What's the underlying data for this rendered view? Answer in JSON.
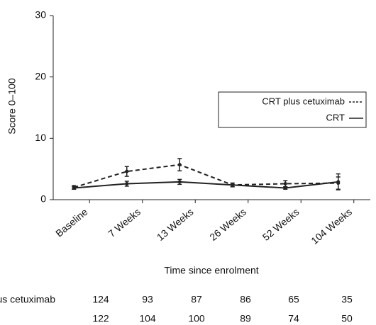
{
  "chart_data": {
    "type": "line",
    "y_label": "Score 0–100",
    "x_label": "Time since enrolment",
    "categories": [
      "Baseline",
      "7 Weeks",
      "13 Weeks",
      "26 Weeks",
      "52 Weeks",
      "104 Weeks"
    ],
    "series": [
      {
        "name": "CRT plus cetuximab",
        "color": "#222222",
        "line_style": "dashed",
        "values": [
          2.0,
          4.6,
          5.7,
          2.4,
          2.6,
          2.7
        ],
        "errors": [
          0.3,
          0.8,
          1.0,
          0.3,
          0.5,
          1.0
        ]
      },
      {
        "name": "CRT",
        "color": "#222222",
        "line_style": "solid",
        "values": [
          1.9,
          2.6,
          2.9,
          2.4,
          1.9,
          2.9
        ],
        "errors": [
          0.2,
          0.4,
          0.4,
          0.3,
          0.2,
          1.3
        ]
      }
    ],
    "ylim": [
      0,
      30
    ],
    "yticks": [
      0,
      10,
      20,
      30
    ],
    "grid": false,
    "legend": "right"
  },
  "table": {
    "rows": [
      {
        "label": "CRT plus cetuximab",
        "values": [
          124,
          93,
          87,
          86,
          65,
          35
        ]
      },
      {
        "label": null,
        "values": [
          122,
          104,
          100,
          89,
          74,
          50
        ]
      }
    ]
  }
}
